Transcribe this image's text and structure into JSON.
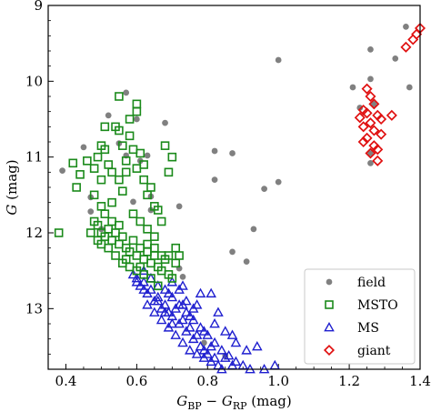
{
  "chart_data": {
    "type": "scatter",
    "title": "",
    "xlabel": "G_BP − G_RP (mag)",
    "ylabel": "G (mag)",
    "xlim": [
      0.35,
      1.4
    ],
    "ylim": [
      13.8,
      9.0
    ],
    "y_inverted": true,
    "x_ticks": [
      0.4,
      0.6,
      0.8,
      1.0,
      1.2,
      1.4
    ],
    "x_tick_labels": [
      "0.4",
      "0.6",
      "0.8",
      "1.0",
      "1.2",
      "1.4"
    ],
    "y_ticks": [
      9,
      10,
      11,
      12,
      13
    ],
    "y_tick_labels": [
      "9",
      "10",
      "11",
      "12",
      "13"
    ],
    "grid": false,
    "legend_position": "lower-right",
    "series": [
      {
        "name": "field",
        "marker": "circle-filled",
        "color": "#808080",
        "points": [
          [
            0.39,
            11.18
          ],
          [
            0.45,
            10.87
          ],
          [
            0.47,
            11.53
          ],
          [
            0.47,
            11.72
          ],
          [
            0.5,
            11.95
          ],
          [
            0.52,
            10.45
          ],
          [
            0.55,
            10.82
          ],
          [
            0.57,
            10.15
          ],
          [
            0.57,
            10.98
          ],
          [
            0.59,
            11.59
          ],
          [
            0.6,
            10.5
          ],
          [
            0.61,
            11.05
          ],
          [
            0.63,
            10.98
          ],
          [
            0.64,
            11.52
          ],
          [
            0.64,
            11.7
          ],
          [
            0.68,
            10.55
          ],
          [
            0.72,
            11.65
          ],
          [
            0.72,
            12.47
          ],
          [
            0.82,
            10.92
          ],
          [
            0.82,
            11.3
          ],
          [
            0.87,
            10.95
          ],
          [
            0.87,
            12.25
          ],
          [
            0.91,
            12.38
          ],
          [
            0.93,
            11.95
          ],
          [
            0.96,
            11.42
          ],
          [
            1.0,
            9.72
          ],
          [
            1.0,
            11.33
          ],
          [
            1.21,
            10.08
          ],
          [
            1.23,
            10.35
          ],
          [
            1.26,
            9.58
          ],
          [
            1.26,
            9.97
          ],
          [
            1.26,
            10.95
          ],
          [
            1.26,
            11.08
          ],
          [
            1.27,
            10.3
          ],
          [
            1.33,
            9.7
          ],
          [
            1.36,
            9.28
          ],
          [
            1.37,
            10.08
          ],
          [
            0.79,
            13.45
          ],
          [
            0.85,
            13.62
          ],
          [
            0.73,
            12.58
          ]
        ]
      },
      {
        "name": "MSTO",
        "marker": "square-open",
        "color": "#1a8a1a",
        "points": [
          [
            0.38,
            12.0
          ],
          [
            0.42,
            11.08
          ],
          [
            0.43,
            11.4
          ],
          [
            0.44,
            11.23
          ],
          [
            0.46,
            11.05
          ],
          [
            0.48,
            11.15
          ],
          [
            0.48,
            11.5
          ],
          [
            0.49,
            11.0
          ],
          [
            0.5,
            10.85
          ],
          [
            0.5,
            11.3
          ],
          [
            0.5,
            11.65
          ],
          [
            0.51,
            10.9
          ],
          [
            0.51,
            10.6
          ],
          [
            0.52,
            11.1
          ],
          [
            0.53,
            11.2
          ],
          [
            0.54,
            10.6
          ],
          [
            0.55,
            10.2
          ],
          [
            0.55,
            10.65
          ],
          [
            0.56,
            10.85
          ],
          [
            0.56,
            11.45
          ],
          [
            0.57,
            11.2
          ],
          [
            0.58,
            10.5
          ],
          [
            0.58,
            10.72
          ],
          [
            0.59,
            10.9
          ],
          [
            0.6,
            10.3
          ],
          [
            0.6,
            10.4
          ],
          [
            0.6,
            11.15
          ],
          [
            0.61,
            10.95
          ],
          [
            0.62,
            11.1
          ],
          [
            0.62,
            11.3
          ],
          [
            0.63,
            11.5
          ],
          [
            0.64,
            11.4
          ],
          [
            0.65,
            11.65
          ],
          [
            0.66,
            11.7
          ],
          [
            0.67,
            11.85
          ],
          [
            0.68,
            10.85
          ],
          [
            0.69,
            11.2
          ],
          [
            0.7,
            11.0
          ],
          [
            0.48,
            11.85
          ],
          [
            0.49,
            11.9
          ],
          [
            0.5,
            12.0
          ],
          [
            0.51,
            12.05
          ],
          [
            0.52,
            11.95
          ],
          [
            0.53,
            12.1
          ],
          [
            0.54,
            12.0
          ],
          [
            0.55,
            12.15
          ],
          [
            0.56,
            12.05
          ],
          [
            0.57,
            12.2
          ],
          [
            0.58,
            12.25
          ],
          [
            0.59,
            12.1
          ],
          [
            0.6,
            12.3
          ],
          [
            0.61,
            12.2
          ],
          [
            0.62,
            12.35
          ],
          [
            0.63,
            12.25
          ],
          [
            0.64,
            12.4
          ],
          [
            0.65,
            12.3
          ],
          [
            0.66,
            12.45
          ],
          [
            0.67,
            12.5
          ],
          [
            0.68,
            12.35
          ],
          [
            0.69,
            12.55
          ],
          [
            0.7,
            12.6
          ],
          [
            0.71,
            12.4
          ],
          [
            0.72,
            12.3
          ],
          [
            0.52,
            12.2
          ],
          [
            0.54,
            12.3
          ],
          [
            0.56,
            12.4
          ],
          [
            0.58,
            12.45
          ],
          [
            0.6,
            12.5
          ],
          [
            0.62,
            12.55
          ],
          [
            0.64,
            12.6
          ],
          [
            0.66,
            12.7
          ],
          [
            0.5,
            12.15
          ],
          [
            0.53,
            11.85
          ],
          [
            0.55,
            11.9
          ],
          [
            0.57,
            12.35
          ],
          [
            0.61,
            12.45
          ],
          [
            0.63,
            12.15
          ],
          [
            0.65,
            12.05
          ],
          [
            0.47,
            12.0
          ],
          [
            0.49,
            12.1
          ],
          [
            0.51,
            11.75
          ],
          [
            0.53,
            11.6
          ],
          [
            0.55,
            11.3
          ],
          [
            0.57,
            11.05
          ],
          [
            0.59,
            11.75
          ],
          [
            0.61,
            11.85
          ],
          [
            0.63,
            11.95
          ],
          [
            0.65,
            12.2
          ],
          [
            0.67,
            12.3
          ],
          [
            0.69,
            12.3
          ],
          [
            0.71,
            12.2
          ]
        ]
      },
      {
        "name": "MS",
        "marker": "triangle-open",
        "color": "#1f1fcf",
        "points": [
          [
            0.59,
            12.55
          ],
          [
            0.6,
            12.6
          ],
          [
            0.61,
            12.7
          ],
          [
            0.62,
            12.65
          ],
          [
            0.63,
            12.8
          ],
          [
            0.64,
            12.75
          ],
          [
            0.65,
            12.9
          ],
          [
            0.66,
            12.85
          ],
          [
            0.67,
            13.0
          ],
          [
            0.68,
            12.95
          ],
          [
            0.69,
            13.05
          ],
          [
            0.7,
            13.1
          ],
          [
            0.71,
            13.0
          ],
          [
            0.72,
            13.2
          ],
          [
            0.73,
            13.15
          ],
          [
            0.74,
            13.3
          ],
          [
            0.75,
            13.25
          ],
          [
            0.76,
            13.4
          ],
          [
            0.77,
            13.35
          ],
          [
            0.78,
            13.5
          ],
          [
            0.79,
            13.55
          ],
          [
            0.8,
            13.6
          ],
          [
            0.81,
            13.7
          ],
          [
            0.82,
            13.65
          ],
          [
            0.83,
            13.75
          ],
          [
            0.84,
            13.8
          ],
          [
            0.62,
            12.5
          ],
          [
            0.64,
            12.6
          ],
          [
            0.66,
            12.7
          ],
          [
            0.68,
            12.75
          ],
          [
            0.7,
            12.85
          ],
          [
            0.72,
            12.95
          ],
          [
            0.74,
            13.05
          ],
          [
            0.76,
            13.15
          ],
          [
            0.78,
            13.25
          ],
          [
            0.8,
            13.35
          ],
          [
            0.82,
            13.45
          ],
          [
            0.84,
            13.55
          ],
          [
            0.86,
            13.62
          ],
          [
            0.88,
            13.7
          ],
          [
            0.9,
            13.75
          ],
          [
            0.92,
            13.8
          ],
          [
            0.63,
            12.95
          ],
          [
            0.65,
            13.05
          ],
          [
            0.67,
            13.15
          ],
          [
            0.69,
            13.25
          ],
          [
            0.71,
            13.35
          ],
          [
            0.73,
            13.45
          ],
          [
            0.75,
            13.55
          ],
          [
            0.77,
            13.6
          ],
          [
            0.79,
            13.65
          ],
          [
            0.7,
            12.65
          ],
          [
            0.72,
            12.75
          ],
          [
            0.74,
            12.9
          ],
          [
            0.76,
            13.0
          ],
          [
            0.78,
            12.8
          ],
          [
            0.82,
            13.2
          ],
          [
            0.85,
            13.3
          ],
          [
            0.88,
            13.45
          ],
          [
            0.91,
            13.55
          ],
          [
            0.94,
            13.5
          ],
          [
            0.96,
            13.8
          ],
          [
            0.99,
            13.75
          ],
          [
            0.73,
            12.7
          ],
          [
            0.77,
            12.95
          ],
          [
            0.81,
            12.8
          ],
          [
            0.83,
            13.05
          ],
          [
            0.87,
            13.35
          ],
          [
            0.69,
            12.8
          ],
          [
            0.73,
            12.95
          ],
          [
            0.75,
            13.1
          ],
          [
            0.79,
            13.3
          ],
          [
            0.81,
            13.5
          ],
          [
            0.85,
            13.65
          ],
          [
            0.87,
            13.75
          ],
          [
            0.6,
            12.65
          ],
          [
            0.62,
            12.75
          ],
          [
            0.66,
            12.9
          ],
          [
            0.68,
            13.05
          ],
          [
            0.7,
            13.2
          ]
        ]
      },
      {
        "name": "giant",
        "marker": "diamond-open",
        "color": "#e01010",
        "points": [
          [
            1.23,
            10.48
          ],
          [
            1.24,
            10.38
          ],
          [
            1.24,
            10.6
          ],
          [
            1.25,
            10.1
          ],
          [
            1.25,
            10.42
          ],
          [
            1.25,
            10.75
          ],
          [
            1.26,
            10.2
          ],
          [
            1.26,
            10.55
          ],
          [
            1.27,
            10.3
          ],
          [
            1.27,
            10.65
          ],
          [
            1.27,
            10.85
          ],
          [
            1.28,
            10.45
          ],
          [
            1.28,
            10.9
          ],
          [
            1.29,
            10.7
          ],
          [
            1.29,
            10.5
          ],
          [
            1.32,
            10.45
          ],
          [
            1.36,
            9.55
          ],
          [
            1.38,
            9.45
          ],
          [
            1.39,
            9.38
          ],
          [
            1.4,
            9.3
          ],
          [
            1.24,
            10.8
          ],
          [
            1.26,
            10.95
          ],
          [
            1.28,
            11.05
          ]
        ]
      }
    ]
  }
}
